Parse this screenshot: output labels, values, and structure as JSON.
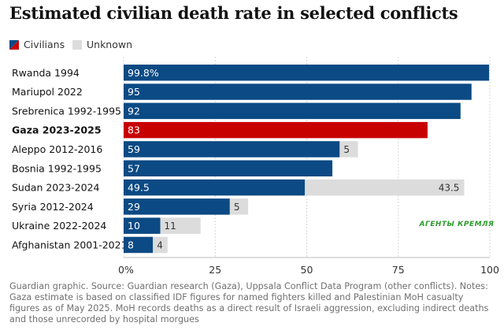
{
  "title": "Estimated civilian death rate in selected conflicts",
  "legend": [
    {
      "label": "Civilians",
      "color": "#0b4a84",
      "accent": "#c70000"
    },
    {
      "label": "Unknown",
      "color": "#dcdcdc"
    }
  ],
  "footnote": "Guardian graphic. Source: Guardian research (Gaza), Uppsala Conflict Data Program (other conflicts). Notes: Gaza estimate is based on classified IDF figures for named fighters killed and Palestinian MoH casualty figures as of May 2025. MoH records deaths as a direct result of Israeli aggression, excluding indirect deaths and those unrecorded by hospital morgues",
  "watermark": "АГЕНТЫ КРЕМЛЯ",
  "chart_data": {
    "type": "bar",
    "orientation": "horizontal",
    "stacked": true,
    "categories": [
      "Rwanda 1994",
      "Mariupol 2022",
      "Srebrenica 1992-1995",
      "Gaza 2023-2025",
      "Aleppo 2012-2016",
      "Bosnia 1992-1995",
      "Sudan 2023-2024",
      "Syria 2012-2024",
      "Ukraine 2022-2024",
      "Afghanistan 2001-2021"
    ],
    "highlight_category": "Gaza 2023-2025",
    "series": [
      {
        "name": "Civilians",
        "color": "#0b4a84",
        "highlight_color": "#c70000",
        "values": [
          99.8,
          95,
          92,
          83,
          59,
          57,
          49.5,
          29,
          10,
          8
        ],
        "labels": [
          "99.8%",
          "95",
          "92",
          "83",
          "59",
          "57",
          "49.5",
          "29",
          "10",
          "8"
        ]
      },
      {
        "name": "Unknown",
        "color": "#dcdcdc",
        "values": [
          null,
          null,
          null,
          null,
          5,
          null,
          43.5,
          5,
          11,
          4
        ],
        "labels": [
          "",
          "",
          "",
          "",
          "5",
          "",
          "43.5",
          "5",
          "11",
          "4"
        ]
      }
    ],
    "xlim": [
      0,
      100
    ],
    "xticks": [
      0,
      25,
      50,
      75,
      100
    ],
    "xticklabels": [
      "0%",
      "25",
      "50",
      "75",
      "100"
    ],
    "grid": "vertical",
    "legend_position": "top-left"
  }
}
